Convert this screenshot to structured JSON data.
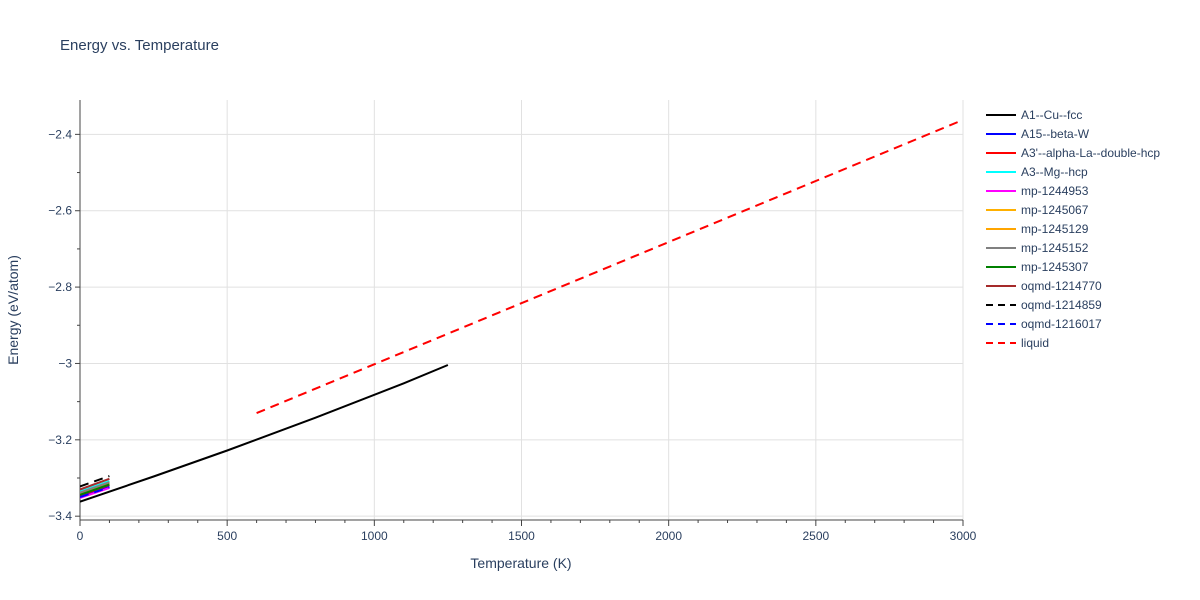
{
  "chart_data": {
    "type": "line",
    "title": "Energy vs. Temperature",
    "xlabel": "Temperature (K)",
    "ylabel": "Energy (eV/atom)",
    "xlim": [
      0,
      3000
    ],
    "ylim": [
      -3.41,
      -2.31
    ],
    "xticks": [
      0,
      500,
      1000,
      1500,
      2000,
      2500,
      3000
    ],
    "xtick_labels": [
      "0",
      "500",
      "1000",
      "1500",
      "2000",
      "2500",
      "3000"
    ],
    "yticks": [
      -3.4,
      -3.2,
      -3.0,
      -2.8,
      -2.6,
      -2.4
    ],
    "ytick_labels": [
      "−3.4",
      "−3.2",
      "−3",
      "−2.8",
      "−2.6",
      "−2.4"
    ],
    "grid": true,
    "legend_position": "right",
    "series": [
      {
        "name": "A1--Cu--fcc",
        "color": "#000000",
        "dash": "solid",
        "x": [
          0,
          250,
          500,
          800,
          1100,
          1250
        ],
        "y": [
          -3.362,
          -3.296,
          -3.228,
          -3.142,
          -3.052,
          -3.004
        ]
      },
      {
        "name": "A15--beta-W",
        "color": "#0000ff",
        "dash": "solid",
        "x": [
          0,
          100
        ],
        "y": [
          -3.348,
          -3.322
        ]
      },
      {
        "name": "A3'--alpha-La--double-hcp",
        "color": "#ff0000",
        "dash": "solid",
        "x": [
          0,
          100
        ],
        "y": [
          -3.346,
          -3.318
        ]
      },
      {
        "name": "A3--Mg--hcp",
        "color": "#00ffff",
        "dash": "solid",
        "x": [
          0,
          100
        ],
        "y": [
          -3.335,
          -3.308
        ]
      },
      {
        "name": "mp-1244953",
        "color": "#ff00ff",
        "dash": "solid",
        "x": [
          0,
          100
        ],
        "y": [
          -3.352,
          -3.326
        ]
      },
      {
        "name": "mp-1245067",
        "color": "#ffb000",
        "dash": "solid",
        "x": [
          0,
          100
        ],
        "y": [
          -3.342,
          -3.315
        ]
      },
      {
        "name": "mp-1245129",
        "color": "#ffa500",
        "dash": "solid",
        "x": [
          0,
          100
        ],
        "y": [
          -3.34,
          -3.313
        ]
      },
      {
        "name": "mp-1245152",
        "color": "#808080",
        "dash": "solid",
        "x": [
          0,
          100
        ],
        "y": [
          -3.338,
          -3.311
        ]
      },
      {
        "name": "mp-1245307",
        "color": "#008000",
        "dash": "solid",
        "x": [
          0,
          100
        ],
        "y": [
          -3.344,
          -3.317
        ]
      },
      {
        "name": "oqmd-1214770",
        "color": "#a52a2a",
        "dash": "solid",
        "x": [
          0,
          100
        ],
        "y": [
          -3.33,
          -3.302
        ]
      },
      {
        "name": "oqmd-1214859",
        "color": "#000000",
        "dash": "dash",
        "x": [
          0,
          100
        ],
        "y": [
          -3.322,
          -3.295
        ]
      },
      {
        "name": "oqmd-1216017",
        "color": "#0000ff",
        "dash": "dash",
        "x": [
          0,
          100
        ],
        "y": [
          -3.35,
          -3.324
        ]
      },
      {
        "name": "liquid",
        "color": "#ff0000",
        "dash": "dash",
        "x": [
          600,
          3000
        ],
        "y": [
          -3.13,
          -2.362
        ]
      }
    ]
  }
}
